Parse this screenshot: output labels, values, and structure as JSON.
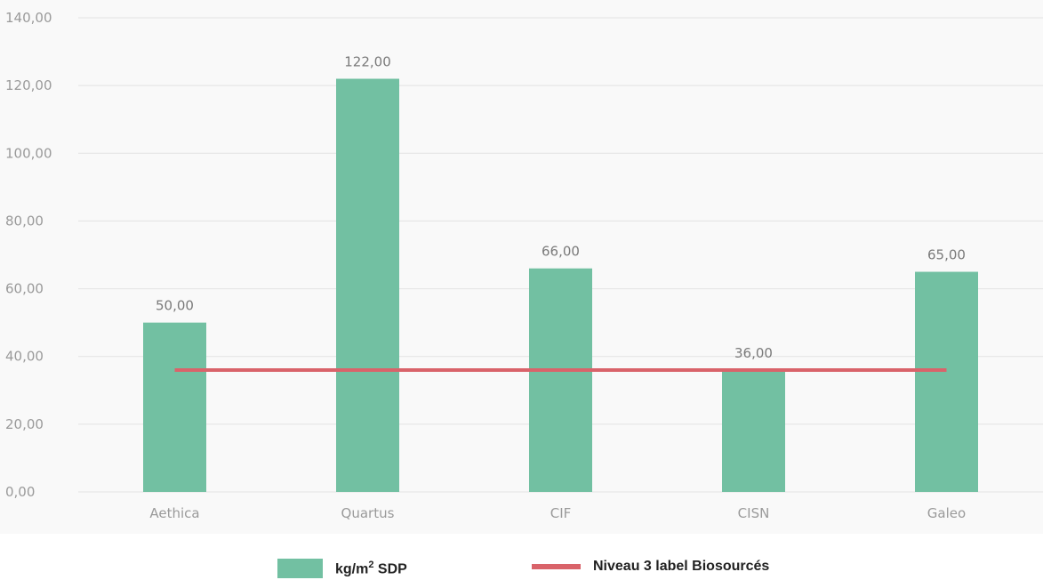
{
  "chart_data": {
    "type": "bar",
    "categories": [
      "Aethica",
      "Quartus",
      "CIF",
      "CISN",
      "Galeo"
    ],
    "series": [
      {
        "name": "kg/m² SDP",
        "type": "bar",
        "values": [
          50,
          122,
          66,
          36,
          65
        ],
        "value_labels": [
          "50,00",
          "122,00",
          "66,00",
          "36,00",
          "65,00"
        ],
        "color": "#72c0a2"
      },
      {
        "name": "Niveau 3 label Biosourcés",
        "type": "line",
        "values": [
          36,
          36,
          36,
          36,
          36
        ],
        "color": "#d9636a"
      }
    ],
    "ylim": [
      0,
      140
    ],
    "y_ticks": [
      0,
      20,
      40,
      60,
      80,
      100,
      120,
      140
    ],
    "y_tick_labels": [
      "0,00",
      "20,00",
      "40,00",
      "60,00",
      "80,00",
      "100,00",
      "120,00",
      "140,00"
    ],
    "grid": true,
    "legend_position": "bottom"
  },
  "legend": {
    "bar_label_prefix": "kg/m",
    "bar_label_sup": "2",
    "bar_label_suffix": " SDP",
    "line_label": "Niveau 3 label Biosourcés"
  }
}
